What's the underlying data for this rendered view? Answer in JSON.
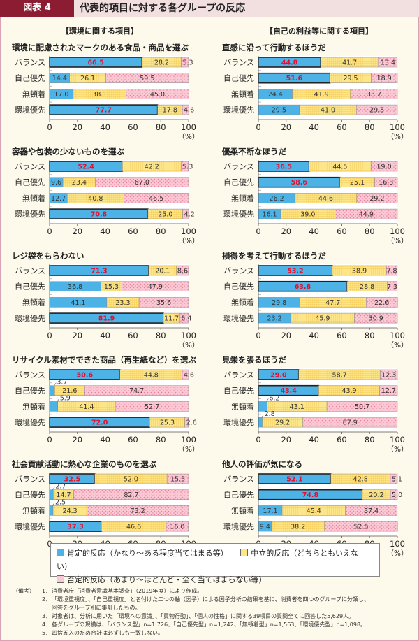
{
  "header": {
    "figure_label": "図表 4",
    "title": "代表的項目に対する各グループの反応"
  },
  "sections": {
    "left": "【環境に関する項目】",
    "right": "【自己の利益等に関する項目】"
  },
  "colors": {
    "positive": "#4db3e6",
    "neutral": "#fde58a",
    "negative": "#f9c9d4",
    "highlight_label": "#e0102f",
    "header_bg": "#8c1c32"
  },
  "legend": [
    {
      "label": "肯定的反応（かなり～ある程度当てはまる等）",
      "color": "#4db3e6"
    },
    {
      "label": "中立的反応（どちらともいえない）",
      "color": "#fde58a"
    },
    {
      "label": "否定的反応（あまり～ほとんど・全く当てはまらない等）",
      "color": "#f9c9d4"
    }
  ],
  "notes": {
    "label": "（備考）",
    "items": [
      {
        "num": "1．",
        "text": "消費者庁「消費者意識基本調査」（2019年度）により作成。"
      },
      {
        "num": "2．",
        "text": "「環境重視度」、「自己重視度」と名付けた二つの軸（因子）による因子分析の結果を基に、消費者を四つのグループに分類し、"
      },
      {
        "num": "",
        "text": "回答をグループ別に集計したもの。"
      },
      {
        "num": "3．",
        "text": "対象者は、分析に用いた「環境への意識」、「買物行動」、「個人の性格」に関する39項目の質問全てに回答した5,629人。"
      },
      {
        "num": "4．",
        "text": "各グループの規模は、「バランス型」n=1,726、「自己優先型」n=1,242、「無頓着型」n=1,563、「環境優先型」n=1,098。"
      },
      {
        "num": "5．",
        "text": "四捨五入のため合計は必ずしも一致しない。"
      }
    ]
  },
  "chart_data": [
    {
      "type": "bar",
      "stacked": true,
      "orientation": "horizontal",
      "title": "環境に配慮されたマークのある食品・商品を選ぶ",
      "categories": [
        "バランス",
        "自己優先",
        "無頓着",
        "環境優先"
      ],
      "series": [
        {
          "name": "肯定的反応",
          "values": [
            66.5,
            14.4,
            17.0,
            77.7
          ]
        },
        {
          "name": "中立的反応",
          "values": [
            28.2,
            26.1,
            38.1,
            17.8
          ]
        },
        {
          "name": "否定的反応",
          "values": [
            5.3,
            59.5,
            45.0,
            4.6
          ]
        }
      ],
      "highlight": [
        "バランス",
        "環境優先"
      ],
      "xlim": [
        0,
        100
      ],
      "xticks": [
        "0",
        "20",
        "40",
        "60",
        "80",
        "100"
      ],
      "unit": "（%）"
    },
    {
      "type": "bar",
      "stacked": true,
      "orientation": "horizontal",
      "title": "容器や包装の少ないものを選ぶ",
      "categories": [
        "バランス",
        "自己優先",
        "無頓着",
        "環境優先"
      ],
      "series": [
        {
          "name": "肯定的反応",
          "values": [
            52.4,
            9.6,
            12.7,
            70.8
          ]
        },
        {
          "name": "中立的反応",
          "values": [
            42.2,
            23.4,
            40.8,
            25.0
          ]
        },
        {
          "name": "否定的反応",
          "values": [
            5.3,
            67.0,
            46.5,
            4.2
          ]
        }
      ],
      "highlight": [
        "バランス",
        "環境優先"
      ],
      "xlim": [
        0,
        100
      ],
      "xticks": [
        "0",
        "20",
        "40",
        "60",
        "80",
        "100"
      ],
      "unit": "（%）"
    },
    {
      "type": "bar",
      "stacked": true,
      "orientation": "horizontal",
      "title": "レジ袋をもらわない",
      "categories": [
        "バランス",
        "自己優先",
        "無頓着",
        "環境優先"
      ],
      "series": [
        {
          "name": "肯定的反応",
          "values": [
            71.3,
            36.8,
            41.1,
            81.9
          ]
        },
        {
          "name": "中立的反応",
          "values": [
            20.1,
            15.3,
            23.3,
            11.7
          ]
        },
        {
          "name": "否定的反応",
          "values": [
            8.6,
            47.9,
            35.6,
            6.4
          ]
        }
      ],
      "highlight": [
        "バランス",
        "環境優先"
      ],
      "xlim": [
        0,
        100
      ],
      "xticks": [
        "0",
        "20",
        "40",
        "60",
        "80",
        "100"
      ],
      "unit": "（%）"
    },
    {
      "type": "bar",
      "stacked": true,
      "orientation": "horizontal",
      "title": "リサイクル素材でできた商品（再生紙など）を選ぶ",
      "categories": [
        "バランス",
        "自己優先",
        "無頓着",
        "環境優先"
      ],
      "series": [
        {
          "name": "肯定的反応",
          "values": [
            50.6,
            3.7,
            5.9,
            72.0
          ]
        },
        {
          "name": "中立的反応",
          "values": [
            44.8,
            21.6,
            41.4,
            25.3
          ]
        },
        {
          "name": "否定的反応",
          "values": [
            4.6,
            74.7,
            52.7,
            2.6
          ]
        }
      ],
      "highlight": [
        "バランス",
        "環境優先"
      ],
      "xlim": [
        0,
        100
      ],
      "xticks": [
        "0",
        "20",
        "40",
        "60",
        "80",
        "100"
      ],
      "unit": "（%）"
    },
    {
      "type": "bar",
      "stacked": true,
      "orientation": "horizontal",
      "title": "社会貢献活動に熱心な企業のものを選ぶ",
      "categories": [
        "バランス",
        "自己優先",
        "無頓着",
        "環境優先"
      ],
      "series": [
        {
          "name": "肯定的反応",
          "values": [
            32.5,
            2.7,
            2.5,
            37.3
          ]
        },
        {
          "name": "中立的反応",
          "values": [
            52.0,
            14.7,
            24.3,
            46.6
          ]
        },
        {
          "name": "否定的反応",
          "values": [
            15.5,
            82.7,
            73.2,
            16.0
          ]
        }
      ],
      "highlight": [
        "バランス",
        "環境優先"
      ],
      "xlim": [
        0,
        100
      ],
      "xticks": [
        "0",
        "20",
        "40",
        "60",
        "80",
        "100"
      ],
      "unit": "（%）"
    },
    {
      "type": "bar",
      "stacked": true,
      "orientation": "horizontal",
      "title": "直感に沿って行動するほうだ",
      "categories": [
        "バランス",
        "自己優先",
        "無頓着",
        "環境優先"
      ],
      "series": [
        {
          "name": "肯定的反応",
          "values": [
            44.8,
            51.6,
            24.4,
            29.5
          ]
        },
        {
          "name": "中立的反応",
          "values": [
            41.7,
            29.5,
            41.9,
            41.0
          ]
        },
        {
          "name": "否定的反応",
          "values": [
            13.4,
            18.9,
            33.7,
            29.5
          ]
        }
      ],
      "highlight": [
        "バランス",
        "自己優先"
      ],
      "xlim": [
        0,
        100
      ],
      "xticks": [
        "0",
        "20",
        "40",
        "60",
        "80",
        "100"
      ],
      "unit": "（%）"
    },
    {
      "type": "bar",
      "stacked": true,
      "orientation": "horizontal",
      "title": "優柔不断なほうだ",
      "categories": [
        "バランス",
        "自己優先",
        "無頓着",
        "環境優先"
      ],
      "series": [
        {
          "name": "肯定的反応",
          "values": [
            36.5,
            58.6,
            26.2,
            16.1
          ]
        },
        {
          "name": "中立的反応",
          "values": [
            44.5,
            25.1,
            44.6,
            39.0
          ]
        },
        {
          "name": "否定的反応",
          "values": [
            19.0,
            16.3,
            29.2,
            44.9
          ]
        }
      ],
      "highlight": [
        "バランス",
        "自己優先"
      ],
      "xlim": [
        0,
        100
      ],
      "xticks": [
        "0",
        "20",
        "40",
        "60",
        "80",
        "100"
      ],
      "unit": "（%）"
    },
    {
      "type": "bar",
      "stacked": true,
      "orientation": "horizontal",
      "title": "損得を考えて行動するほうだ",
      "categories": [
        "バランス",
        "自己優先",
        "無頓着",
        "環境優先"
      ],
      "series": [
        {
          "name": "肯定的反応",
          "values": [
            53.2,
            63.8,
            29.8,
            23.2
          ]
        },
        {
          "name": "中立的反応",
          "values": [
            38.9,
            28.8,
            47.7,
            45.9
          ]
        },
        {
          "name": "否定的反応",
          "values": [
            7.8,
            7.3,
            22.6,
            30.9
          ]
        }
      ],
      "highlight": [
        "バランス",
        "自己優先"
      ],
      "xlim": [
        0,
        100
      ],
      "xticks": [
        "0",
        "20",
        "40",
        "60",
        "80",
        "100"
      ],
      "unit": "（%）"
    },
    {
      "type": "bar",
      "stacked": true,
      "orientation": "horizontal",
      "title": "見栄を張るほうだ",
      "categories": [
        "バランス",
        "自己優先",
        "無頓着",
        "環境優先"
      ],
      "series": [
        {
          "name": "肯定的反応",
          "values": [
            29.0,
            43.4,
            6.2,
            2.8
          ]
        },
        {
          "name": "中立的反応",
          "values": [
            58.7,
            43.9,
            43.1,
            29.2
          ]
        },
        {
          "name": "否定的反応",
          "values": [
            12.3,
            12.7,
            50.7,
            67.9
          ]
        }
      ],
      "highlight": [
        "バランス",
        "自己優先"
      ],
      "xlim": [
        0,
        100
      ],
      "xticks": [
        "0",
        "20",
        "40",
        "60",
        "80",
        "100"
      ],
      "unit": "（%）"
    },
    {
      "type": "bar",
      "stacked": true,
      "orientation": "horizontal",
      "title": "他人の評価が気になる",
      "categories": [
        "バランス",
        "自己優先",
        "無頓着",
        "環境優先"
      ],
      "series": [
        {
          "name": "肯定的反応",
          "values": [
            52.1,
            74.8,
            17.1,
            9.4
          ]
        },
        {
          "name": "中立的反応",
          "values": [
            42.8,
            20.2,
            45.4,
            38.2
          ]
        },
        {
          "name": "否定的反応",
          "values": [
            5.1,
            5.0,
            37.4,
            52.5
          ]
        }
      ],
      "highlight": [
        "バランス",
        "自己優先"
      ],
      "xlim": [
        0,
        100
      ],
      "xticks": [
        "0",
        "20",
        "40",
        "60",
        "80",
        "100"
      ],
      "unit": "（%）"
    }
  ]
}
